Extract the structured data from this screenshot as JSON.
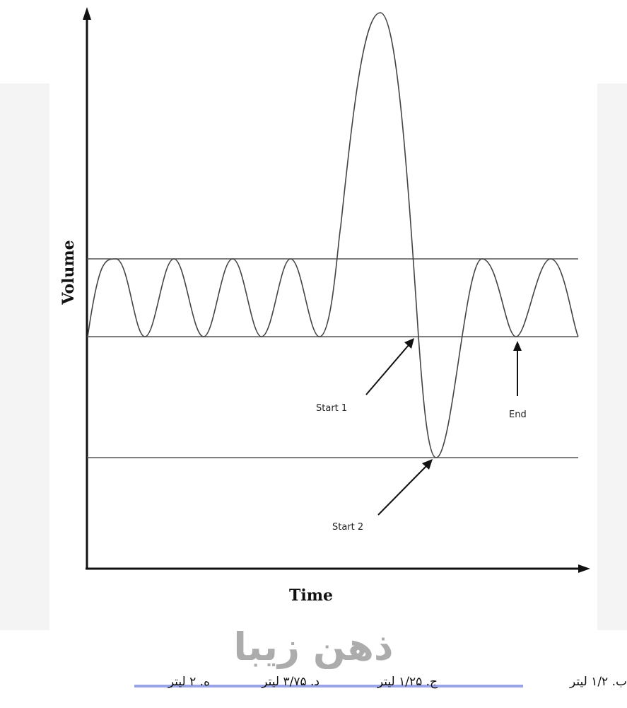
{
  "axis": {
    "x_label": "Time",
    "y_label": "Volume"
  },
  "annotations": {
    "start1": "Start 1",
    "start2": "Start 2",
    "end": "End"
  },
  "watermark": "ذهن زیبا",
  "options": [
    {
      "id": "b",
      "text": "ب. ۱/۲  لیتر"
    },
    {
      "id": "c",
      "text": "ج. ۱/۲۵ لیتر"
    },
    {
      "id": "d",
      "text": "د. ۳/۷۵ لیتر"
    },
    {
      "id": "e",
      "text": "ه.   ۲   لیتر"
    }
  ],
  "colors": {
    "line": "#555555",
    "axis": "#111111",
    "highlight": "#9aa3e8"
  }
}
